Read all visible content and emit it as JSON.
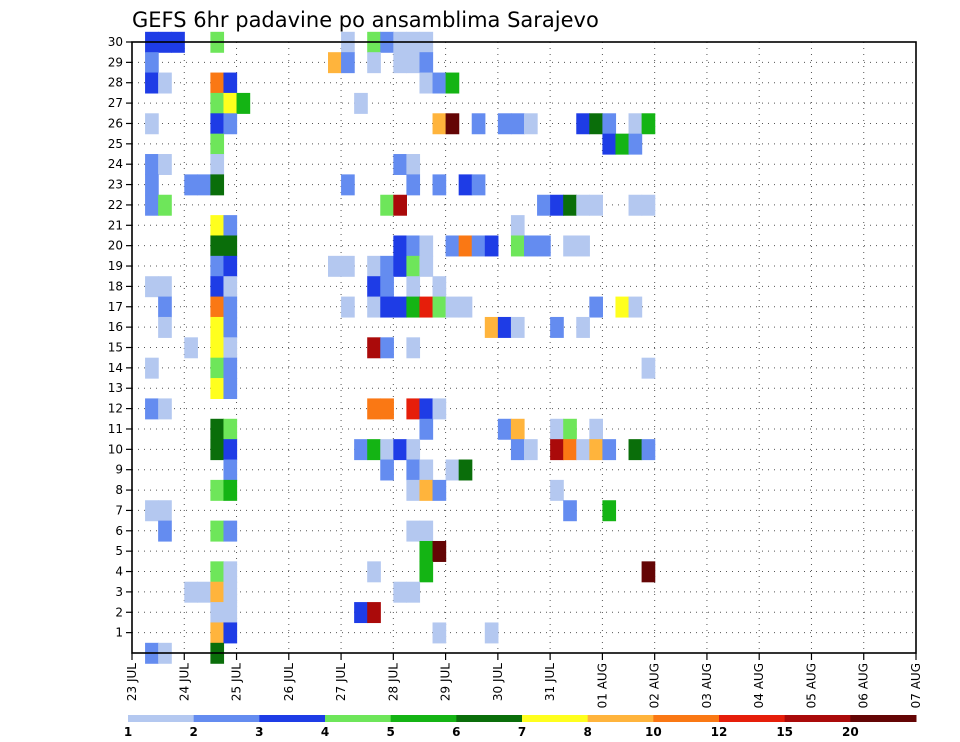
{
  "chart_data": {
    "type": "heatmap",
    "title": "GEFS 6hr padavine po ansamblima Sarajevo",
    "xlabel": "",
    "ylabel": "",
    "y_ticks": [
      "1",
      "2",
      "3",
      "4",
      "5",
      "6",
      "7",
      "8",
      "9",
      "10",
      "11",
      "12",
      "13",
      "14",
      "15",
      "16",
      "17",
      "18",
      "19",
      "20",
      "21",
      "22",
      "23",
      "24",
      "25",
      "26",
      "27",
      "28",
      "29",
      "30"
    ],
    "x_ticks": [
      "23 JUL",
      "24 JUL",
      "25 JUL",
      "26 JUL",
      "27 JUL",
      "28 JUL",
      "29 JUL",
      "30 JUL",
      "31 JUL",
      "01 AUG",
      "02 AUG",
      "03 AUG",
      "04 AUG",
      "05 AUG",
      "06 AUG",
      "07 AUG"
    ],
    "x_range_days": [
      0,
      15
    ],
    "y_range": [
      0,
      30
    ],
    "grid": true,
    "color_levels": [
      {
        "label": "1",
        "color": "#b4c8f0"
      },
      {
        "label": "2",
        "color": "#648cf0"
      },
      {
        "label": "3",
        "color": "#1e3ce6"
      },
      {
        "label": "4",
        "color": "#6ee65a"
      },
      {
        "label": "5",
        "color": "#14b414"
      },
      {
        "label": "6",
        "color": "#0a6e0a"
      },
      {
        "label": "7",
        "color": "#ffff1e"
      },
      {
        "label": "8",
        "color": "#ffb43c"
      },
      {
        "label": "10",
        "color": "#fa7814"
      },
      {
        "label": "12",
        "color": "#e61e0a"
      },
      {
        "label": "15",
        "color": "#aa0a0a"
      },
      {
        "label": "20",
        "color": "#640505"
      }
    ],
    "cells_note": "Each cell: [member, 6-hour step index from 23 JUL 00Z, color level index]",
    "cells": [
      [
        30,
        1,
        2
      ],
      [
        30,
        2,
        2
      ],
      [
        30,
        3,
        2
      ],
      [
        30,
        6,
        3
      ],
      [
        30,
        16,
        0
      ],
      [
        30,
        18,
        3
      ],
      [
        30,
        19,
        1
      ],
      [
        30,
        20,
        0
      ],
      [
        30,
        21,
        0
      ],
      [
        30,
        22,
        0
      ],
      [
        29,
        1,
        1
      ],
      [
        29,
        15,
        7
      ],
      [
        29,
        16,
        1
      ],
      [
        29,
        18,
        0
      ],
      [
        29,
        20,
        0
      ],
      [
        29,
        21,
        0
      ],
      [
        29,
        22,
        1
      ],
      [
        28,
        1,
        2
      ],
      [
        28,
        2,
        0
      ],
      [
        28,
        6,
        8
      ],
      [
        28,
        7,
        2
      ],
      [
        28,
        22,
        0
      ],
      [
        28,
        23,
        1
      ],
      [
        28,
        24,
        4
      ],
      [
        27,
        6,
        3
      ],
      [
        27,
        7,
        6
      ],
      [
        27,
        8,
        4
      ],
      [
        27,
        17,
        0
      ],
      [
        26,
        1,
        0
      ],
      [
        26,
        6,
        2
      ],
      [
        26,
        7,
        1
      ],
      [
        26,
        23,
        7
      ],
      [
        26,
        24,
        11
      ],
      [
        26,
        26,
        1
      ],
      [
        26,
        28,
        1
      ],
      [
        26,
        29,
        1
      ],
      [
        26,
        30,
        0
      ],
      [
        26,
        34,
        2
      ],
      [
        26,
        35,
        5
      ],
      [
        26,
        36,
        1
      ],
      [
        26,
        38,
        0
      ],
      [
        26,
        39,
        4
      ],
      [
        25,
        6,
        3
      ],
      [
        25,
        36,
        2
      ],
      [
        25,
        37,
        4
      ],
      [
        25,
        38,
        1
      ],
      [
        24,
        1,
        1
      ],
      [
        24,
        2,
        0
      ],
      [
        24,
        6,
        0
      ],
      [
        24,
        20,
        1
      ],
      [
        24,
        21,
        0
      ],
      [
        23,
        1,
        1
      ],
      [
        23,
        4,
        1
      ],
      [
        23,
        5,
        1
      ],
      [
        23,
        6,
        5
      ],
      [
        23,
        16,
        1
      ],
      [
        23,
        21,
        1
      ],
      [
        23,
        23,
        1
      ],
      [
        23,
        25,
        2
      ],
      [
        23,
        26,
        1
      ],
      [
        22,
        1,
        1
      ],
      [
        22,
        2,
        3
      ],
      [
        22,
        19,
        3
      ],
      [
        22,
        20,
        10
      ],
      [
        22,
        31,
        1
      ],
      [
        22,
        32,
        2
      ],
      [
        22,
        33,
        5
      ],
      [
        22,
        34,
        0
      ],
      [
        22,
        35,
        0
      ],
      [
        22,
        38,
        0
      ],
      [
        22,
        39,
        0
      ],
      [
        21,
        6,
        6
      ],
      [
        21,
        7,
        1
      ],
      [
        21,
        29,
        0
      ],
      [
        20,
        6,
        5
      ],
      [
        20,
        7,
        5
      ],
      [
        20,
        20,
        2
      ],
      [
        20,
        21,
        1
      ],
      [
        20,
        22,
        0
      ],
      [
        20,
        24,
        1
      ],
      [
        20,
        25,
        8
      ],
      [
        20,
        26,
        1
      ],
      [
        20,
        27,
        2
      ],
      [
        20,
        29,
        3
      ],
      [
        20,
        30,
        1
      ],
      [
        20,
        31,
        1
      ],
      [
        20,
        33,
        0
      ],
      [
        20,
        34,
        0
      ],
      [
        19,
        6,
        1
      ],
      [
        19,
        7,
        2
      ],
      [
        19,
        15,
        0
      ],
      [
        19,
        16,
        0
      ],
      [
        19,
        18,
        0
      ],
      [
        19,
        19,
        1
      ],
      [
        19,
        20,
        2
      ],
      [
        19,
        21,
        3
      ],
      [
        19,
        22,
        0
      ],
      [
        18,
        1,
        0
      ],
      [
        18,
        2,
        0
      ],
      [
        18,
        6,
        2
      ],
      [
        18,
        7,
        0
      ],
      [
        18,
        18,
        2
      ],
      [
        18,
        19,
        1
      ],
      [
        18,
        21,
        0
      ],
      [
        18,
        23,
        0
      ],
      [
        17,
        2,
        1
      ],
      [
        17,
        6,
        8
      ],
      [
        17,
        7,
        1
      ],
      [
        17,
        16,
        0
      ],
      [
        17,
        18,
        0
      ],
      [
        17,
        19,
        2
      ],
      [
        17,
        20,
        2
      ],
      [
        17,
        21,
        4
      ],
      [
        17,
        22,
        9
      ],
      [
        17,
        23,
        3
      ],
      [
        17,
        24,
        0
      ],
      [
        17,
        25,
        0
      ],
      [
        17,
        35,
        1
      ],
      [
        17,
        37,
        6
      ],
      [
        17,
        38,
        0
      ],
      [
        16,
        2,
        0
      ],
      [
        16,
        6,
        6
      ],
      [
        16,
        7,
        1
      ],
      [
        16,
        27,
        7
      ],
      [
        16,
        28,
        2
      ],
      [
        16,
        29,
        0
      ],
      [
        16,
        32,
        1
      ],
      [
        16,
        34,
        0
      ],
      [
        15,
        4,
        0
      ],
      [
        15,
        6,
        6
      ],
      [
        15,
        7,
        0
      ],
      [
        15,
        18,
        10
      ],
      [
        15,
        19,
        1
      ],
      [
        15,
        21,
        0
      ],
      [
        14,
        1,
        0
      ],
      [
        14,
        6,
        3
      ],
      [
        14,
        7,
        1
      ],
      [
        14,
        39,
        0
      ],
      [
        13,
        6,
        6
      ],
      [
        13,
        7,
        1
      ],
      [
        12,
        1,
        1
      ],
      [
        12,
        2,
        0
      ],
      [
        12,
        18,
        8
      ],
      [
        12,
        19,
        8
      ],
      [
        12,
        21,
        9
      ],
      [
        12,
        22,
        2
      ],
      [
        12,
        23,
        0
      ],
      [
        11,
        6,
        5
      ],
      [
        11,
        7,
        3
      ],
      [
        11,
        22,
        1
      ],
      [
        11,
        28,
        1
      ],
      [
        11,
        29,
        7
      ],
      [
        11,
        32,
        0
      ],
      [
        11,
        33,
        3
      ],
      [
        11,
        35,
        0
      ],
      [
        10,
        6,
        5
      ],
      [
        10,
        7,
        2
      ],
      [
        10,
        17,
        1
      ],
      [
        10,
        18,
        4
      ],
      [
        10,
        19,
        0
      ],
      [
        10,
        20,
        2
      ],
      [
        10,
        21,
        0
      ],
      [
        10,
        29,
        1
      ],
      [
        10,
        30,
        0
      ],
      [
        10,
        32,
        10
      ],
      [
        10,
        33,
        8
      ],
      [
        10,
        34,
        0
      ],
      [
        10,
        35,
        7
      ],
      [
        10,
        36,
        1
      ],
      [
        10,
        38,
        5
      ],
      [
        10,
        39,
        1
      ],
      [
        9,
        7,
        1
      ],
      [
        9,
        19,
        1
      ],
      [
        9,
        21,
        1
      ],
      [
        9,
        22,
        0
      ],
      [
        9,
        24,
        0
      ],
      [
        9,
        25,
        5
      ],
      [
        8,
        6,
        3
      ],
      [
        8,
        7,
        4
      ],
      [
        8,
        21,
        0
      ],
      [
        8,
        22,
        7
      ],
      [
        8,
        23,
        1
      ],
      [
        8,
        32,
        0
      ],
      [
        7,
        1,
        0
      ],
      [
        7,
        2,
        0
      ],
      [
        7,
        33,
        1
      ],
      [
        7,
        36,
        4
      ],
      [
        6,
        2,
        1
      ],
      [
        6,
        6,
        3
      ],
      [
        6,
        7,
        1
      ],
      [
        6,
        21,
        0
      ],
      [
        6,
        22,
        0
      ],
      [
        5,
        22,
        4
      ],
      [
        5,
        23,
        11
      ],
      [
        4,
        6,
        3
      ],
      [
        4,
        7,
        0
      ],
      [
        4,
        18,
        0
      ],
      [
        4,
        22,
        4
      ],
      [
        4,
        39,
        11
      ],
      [
        3,
        4,
        0
      ],
      [
        3,
        5,
        0
      ],
      [
        3,
        6,
        7
      ],
      [
        3,
        7,
        0
      ],
      [
        3,
        20,
        0
      ],
      [
        3,
        21,
        0
      ],
      [
        2,
        6,
        0
      ],
      [
        2,
        7,
        0
      ],
      [
        2,
        17,
        2
      ],
      [
        2,
        18,
        10
      ],
      [
        1,
        6,
        7
      ],
      [
        1,
        7,
        2
      ],
      [
        1,
        23,
        0
      ],
      [
        1,
        27,
        0
      ],
      [
        0,
        1,
        1
      ],
      [
        0,
        2,
        0
      ],
      [
        0,
        6,
        5
      ]
    ],
    "legend_position": "bottom"
  }
}
